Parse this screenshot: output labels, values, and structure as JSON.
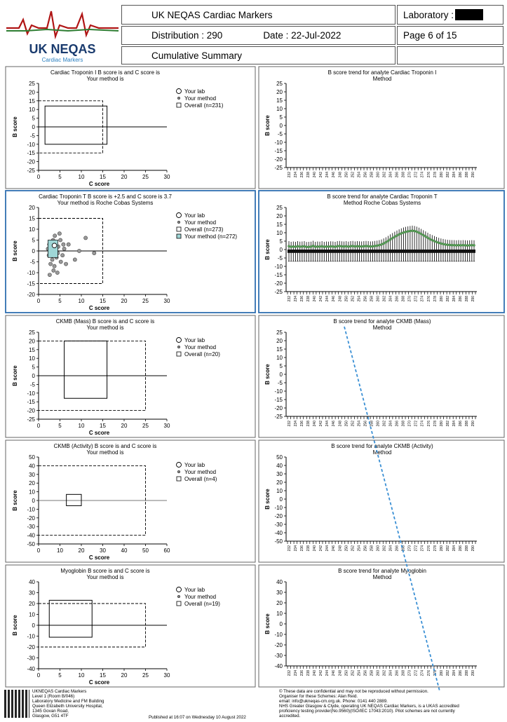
{
  "header": {
    "scheme_title": "UK NEQAS Cardiac Markers",
    "laboratory_label": "Laboratory :",
    "distribution": "Distribution : 290",
    "date": "Date : 22-Jul-2022",
    "page": "Page 6 of 15",
    "summary": "Cumulative Summary",
    "logo_main": "UK NEQAS",
    "logo_sub": "Cardiac Markers"
  },
  "legend_labels": {
    "your_lab": "Your lab",
    "your_method": "Your method",
    "overall_prefix": "Overall (n="
  },
  "trend_x_labels": [
    "232",
    "234",
    "236",
    "238",
    "240",
    "242",
    "244",
    "246",
    "248",
    "250",
    "252",
    "254",
    "256",
    "258",
    "260",
    "262",
    "264",
    "266",
    "268",
    "270",
    "272",
    "274",
    "276",
    "278",
    "280",
    "282",
    "284",
    "286",
    "288",
    "290"
  ],
  "chart_data": [
    {
      "type": "scatter",
      "title": "Cardiac Troponin I B score is  and C score is",
      "subtitle": "Your method is",
      "xlabel": "C score",
      "ylabel": "B score",
      "xlim": [
        0,
        30
      ],
      "ylim": [
        -25,
        25
      ],
      "xticks": [
        0,
        5,
        10,
        15,
        20,
        25,
        30
      ],
      "yticks": [
        25,
        20,
        15,
        10,
        5,
        0,
        -5,
        -10,
        -15,
        -20,
        -25
      ],
      "overall_box": {
        "c_max": 16,
        "b_min": -10,
        "b_max": 12
      },
      "dashed_limits": {
        "c_max": 15,
        "b_min": -15,
        "b_max": 15
      },
      "overall_n": 231,
      "method_n": null,
      "points": []
    },
    {
      "type": "line",
      "title": "B score trend for analyte Cardiac Troponin I",
      "subtitle": "Method",
      "ylabel": "B score",
      "ylim": [
        -25,
        25
      ],
      "yticks": [
        25,
        20,
        15,
        10,
        5,
        0,
        -5,
        -10,
        -15,
        -20,
        -25
      ],
      "values": []
    },
    {
      "type": "scatter",
      "title": "Cardiac Troponin T B score is +2.5 and C score is 3.7",
      "subtitle": "Your method is Roche Cobas Systems",
      "xlabel": "C score",
      "ylabel": "B score",
      "xlim": [
        0,
        30
      ],
      "ylim": [
        -20,
        20
      ],
      "xticks": [
        0,
        5,
        10,
        15,
        20,
        25,
        30
      ],
      "yticks": [
        20,
        15,
        10,
        5,
        0,
        -5,
        -10,
        -15,
        -20
      ],
      "overall_box": null,
      "dashed_limits": {
        "c_max": 15,
        "b_min": -15,
        "b_max": 15
      },
      "overall_n": 273,
      "method_n": 272,
      "your_lab": {
        "c": 3.7,
        "b": 2.5
      },
      "points": [
        [
          2.5,
          3
        ],
        [
          3,
          -1
        ],
        [
          3.4,
          5
        ],
        [
          2.8,
          -6
        ],
        [
          3.8,
          7
        ],
        [
          4.2,
          -3
        ],
        [
          2.2,
          1
        ],
        [
          4.6,
          2
        ],
        [
          5.2,
          -5
        ],
        [
          3.5,
          -9
        ],
        [
          2.6,
          -11
        ],
        [
          4.9,
          8
        ],
        [
          6,
          1
        ],
        [
          7,
          3
        ],
        [
          5.6,
          -2
        ],
        [
          3.2,
          -4
        ],
        [
          2.9,
          4
        ],
        [
          4.1,
          0
        ],
        [
          3.7,
          -7
        ],
        [
          5.1,
          5
        ],
        [
          2.4,
          -2
        ],
        [
          6.4,
          -6
        ],
        [
          11,
          6
        ],
        [
          8.5,
          -4
        ],
        [
          9.5,
          0
        ],
        [
          13,
          -1
        ],
        [
          4.4,
          -10
        ],
        [
          5.8,
          3
        ],
        [
          3.1,
          2
        ],
        [
          4.5,
          -1
        ]
      ]
    },
    {
      "type": "line",
      "title": "B score trend for analyte Cardiac Troponin T",
      "subtitle": "Method Roche Cobas Systems",
      "ylabel": "B score",
      "ylim": [
        -25,
        25
      ],
      "yticks": [
        25,
        20,
        15,
        10,
        5,
        0,
        -5,
        -10,
        -15,
        -20,
        -25
      ],
      "values": [
        2,
        1.6,
        1.8,
        1.6,
        2,
        1.7,
        1.8,
        2,
        1.5,
        1.6,
        1.7,
        2.2,
        1.6,
        1.8,
        1.7,
        2,
        1.6,
        1.8,
        1.7,
        1.9,
        1.8,
        1.6,
        2,
        2.1,
        1.9,
        1.8,
        2,
        1.7,
        2,
        2.1,
        1.8,
        2,
        1.9,
        1.8,
        2,
        2.1,
        2,
        1.8,
        1.9,
        2.1,
        2.3,
        2.6,
        3,
        3.6,
        4.3,
        5.1,
        6,
        6.8,
        7.6,
        8.3,
        9,
        9.6,
        10.1,
        10.5,
        10.8,
        11,
        11.2,
        11,
        10.6,
        10,
        9.3,
        8.5,
        7.8,
        7,
        6.2,
        5.6,
        5,
        4.5,
        4,
        3.6,
        3.3,
        3,
        2.8,
        2.7,
        2.6,
        2.6,
        2.5,
        2.6,
        2.5,
        2.6,
        2.5,
        2.4,
        2.5,
        2.6,
        2.5
      ]
    },
    {
      "type": "scatter",
      "title": "CKMB (Mass) B score is  and C score is",
      "subtitle": "Your method is",
      "xlabel": "C score",
      "ylabel": "B score",
      "xlim": [
        0,
        30
      ],
      "ylim": [
        -25,
        25
      ],
      "xticks": [
        0,
        5,
        10,
        15,
        20,
        25,
        30
      ],
      "yticks": [
        25,
        20,
        15,
        10,
        5,
        0,
        -5,
        -10,
        -15,
        -20,
        -25
      ],
      "overall_box": {
        "c_min": 6,
        "c_max": 16,
        "b_min": -13,
        "b_max": 20
      },
      "dashed_limits": {
        "c_max": 25,
        "b_min": -20,
        "b_max": 20
      },
      "overall_n": 20,
      "method_n": null,
      "points": []
    },
    {
      "type": "line",
      "title": "B score trend for analyte CKMB (Mass)",
      "subtitle": "Method",
      "ylabel": "B score",
      "ylim": [
        -25,
        25
      ],
      "yticks": [
        25,
        20,
        15,
        10,
        5,
        0,
        -5,
        -10,
        -15,
        -20,
        -25
      ],
      "values": []
    },
    {
      "type": "scatter",
      "title": "CKMB (Activity) B score is  and C score is",
      "subtitle": "Your method is",
      "xlabel": "C score",
      "ylabel": "B score",
      "xlim": [
        0,
        60
      ],
      "ylim": [
        -50,
        50
      ],
      "xticks": [
        0,
        10,
        20,
        30,
        40,
        50,
        60
      ],
      "yticks": [
        50,
        40,
        30,
        20,
        10,
        0,
        -10,
        -20,
        -30,
        -40,
        -50
      ],
      "overall_box": {
        "c_min": 13,
        "c_max": 20,
        "b_min": -6,
        "b_max": 7
      },
      "dashed_limits": {
        "c_max": 50,
        "b_min": -40,
        "b_max": 40
      },
      "overall_n": 4,
      "method_n": null,
      "points": []
    },
    {
      "type": "line",
      "title": "B score trend for analyte CKMB (Activity)",
      "subtitle": "Method",
      "ylabel": "B score",
      "ylim": [
        -50,
        50
      ],
      "yticks": [
        50,
        40,
        30,
        20,
        10,
        0,
        -10,
        -20,
        -30,
        -40,
        -50
      ],
      "values": []
    },
    {
      "type": "scatter",
      "title": "Myoglobin B score is  and C score is",
      "subtitle": "Your method is",
      "xlabel": "C score",
      "ylabel": "B score",
      "xlim": [
        0,
        30
      ],
      "ylim": [
        -40,
        40
      ],
      "xticks": [
        0,
        5,
        10,
        15,
        20,
        25,
        30
      ],
      "yticks": [
        40,
        30,
        20,
        10,
        0,
        -10,
        -20,
        -30,
        -40
      ],
      "overall_box": {
        "c_min": 2.5,
        "c_max": 12.5,
        "b_min": -11,
        "b_max": 23
      },
      "dashed_limits": {
        "c_max": 25,
        "b_min": -20,
        "b_max": 20
      },
      "overall_n": 19,
      "method_n": null,
      "points": []
    },
    {
      "type": "line",
      "title": "B score trend for analyte Myoglobin",
      "subtitle": "Method",
      "ylabel": "B score",
      "ylim": [
        -40,
        40
      ],
      "yticks": [
        40,
        30,
        20,
        10,
        0,
        -10,
        -20,
        -30,
        -40
      ],
      "values": []
    }
  ],
  "footer": {
    "left": [
      "UKNEQAS Cardiac Markers",
      "Level 1 (Room B/046)",
      "Laboratory Medicine and FM Building",
      "Queen Elizabeth University Hospital,",
      "1345 Govan Road,",
      "Glasgow, G51 4TF"
    ],
    "published": "Published at 16:07 on Wednesday 10 August 2022",
    "right": [
      "© These data are confidential and may not be reproduced without permission.",
      "Organiser for these Schemes: Alan Reid.",
      "email: info@ukneqas-cm.org.uk. Phone: 0141 440 2889.",
      "NHS Greater Glasgow & Clyde, operating UK NEQAS Cardiac Markers, is a UKAS accredited",
      "proficiency testing provider(No.9560)(ISO/IEC 17043:2010). Pilot schemes are not currently",
      "accredited."
    ]
  }
}
